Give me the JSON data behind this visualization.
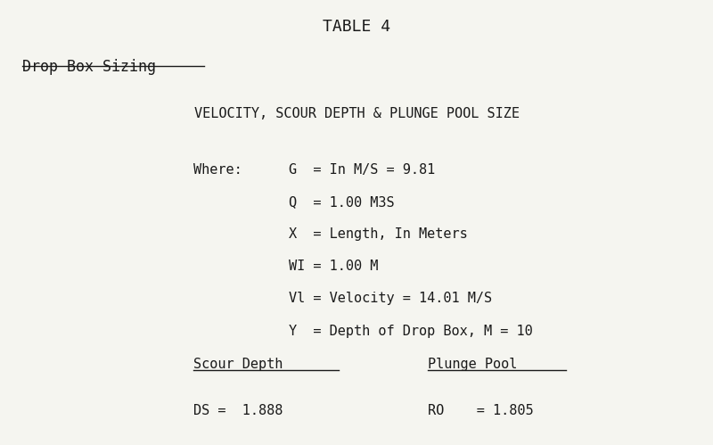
{
  "title": "TABLE 4",
  "subtitle": "Drop Box Sizing",
  "section_header": "VELOCITY, SCOUR DEPTH & PLUNGE POOL SIZE",
  "where_label": "Where:",
  "variables": [
    "G  = In M/S = 9.81",
    "Q  = 1.00 M3S",
    "X  = Length, In Meters",
    "WI = 1.00 M",
    "Vl = Velocity = 14.01 M/S",
    "Y  = Depth of Drop Box, M = 10"
  ],
  "scour_label": "Scour Depth",
  "plunge_label": "Plunge Pool",
  "scour_value": "DS =  1.888",
  "plunge_value": "RO    = 1.805",
  "bg_color": "#f5f5f0",
  "text_color": "#1a1a1a",
  "font_family": "monospace",
  "title_fontsize": 13,
  "body_fontsize": 11,
  "subtitle_fontsize": 12
}
